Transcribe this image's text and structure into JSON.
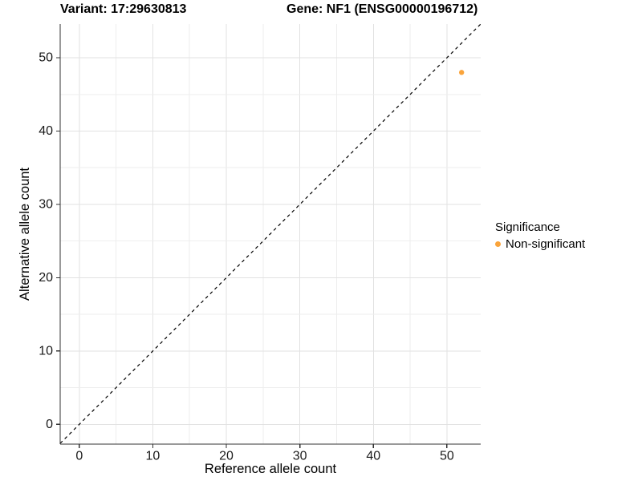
{
  "titles": {
    "variant": "Variant: 17:29630813",
    "gene": "Gene: NF1 (ENSG00000196712)"
  },
  "legend": {
    "title": "Significance",
    "entries": [
      {
        "label": "Non-significant",
        "color": "#FAA43B"
      }
    ]
  },
  "colors": {
    "point": "#FAA43B",
    "grid_major": "#e2e2e2",
    "grid_minor": "#eeeeee",
    "axis_line": "#333333",
    "tick_text": "#1a1a1a",
    "axis_title": "#000000",
    "reference_line": "#000000",
    "background": "#ffffff"
  },
  "chart_data": {
    "type": "scatter",
    "title_left": "Variant: 17:29630813",
    "title_right": "Gene: NF1 (ENSG00000196712)",
    "xlabel": "Reference allele count",
    "ylabel": "Alternative allele count",
    "xlim": [
      -2.6,
      54.6
    ],
    "ylim": [
      -2.7,
      54.6
    ],
    "x_ticks": [
      0,
      10,
      20,
      30,
      40,
      50
    ],
    "y_ticks": [
      0,
      10,
      20,
      30,
      40,
      50
    ],
    "minor_grid_step": 5,
    "grid": true,
    "legend_position": "right",
    "series": [
      {
        "name": "Non-significant",
        "color": "#FAA43B",
        "points": [
          {
            "x": 52,
            "y": 48
          }
        ]
      }
    ],
    "reference_line": {
      "type": "identity",
      "slope": 1,
      "intercept": 0,
      "style": "dashed",
      "color": "#000000"
    }
  }
}
